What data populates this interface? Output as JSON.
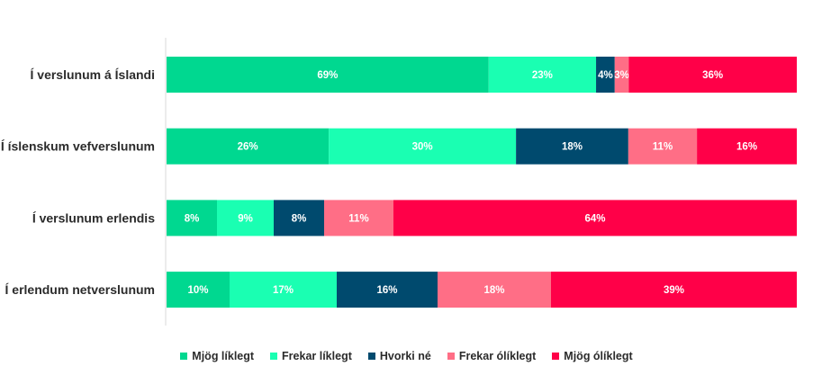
{
  "chart_data": {
    "type": "bar",
    "orientation": "horizontal",
    "stacked": true,
    "categories": [
      "Í verslunum á Íslandi",
      "Í íslenskum vefverslunum",
      "Í verslunum erlendis",
      "Í erlendum netverslunum"
    ],
    "series": [
      {
        "name": "Mjög líklegt",
        "color": "#00d890",
        "values": [
          69,
          26,
          8,
          10
        ]
      },
      {
        "name": "Frekar líklegt",
        "color": "#1affb2",
        "values": [
          23,
          30,
          9,
          17
        ]
      },
      {
        "name": "Hvorki né",
        "color": "#004a6e",
        "values": [
          4,
          18,
          8,
          16
        ]
      },
      {
        "name": "Frekar ólíklegt",
        "color": "#ff6e86",
        "values": [
          3,
          11,
          11,
          18
        ]
      },
      {
        "name": "Mjög ólíklegt",
        "color": "#ff0048",
        "values": [
          36,
          16,
          64,
          39
        ]
      }
    ],
    "value_suffix": "%",
    "legend_position": "bottom",
    "grid": false
  }
}
